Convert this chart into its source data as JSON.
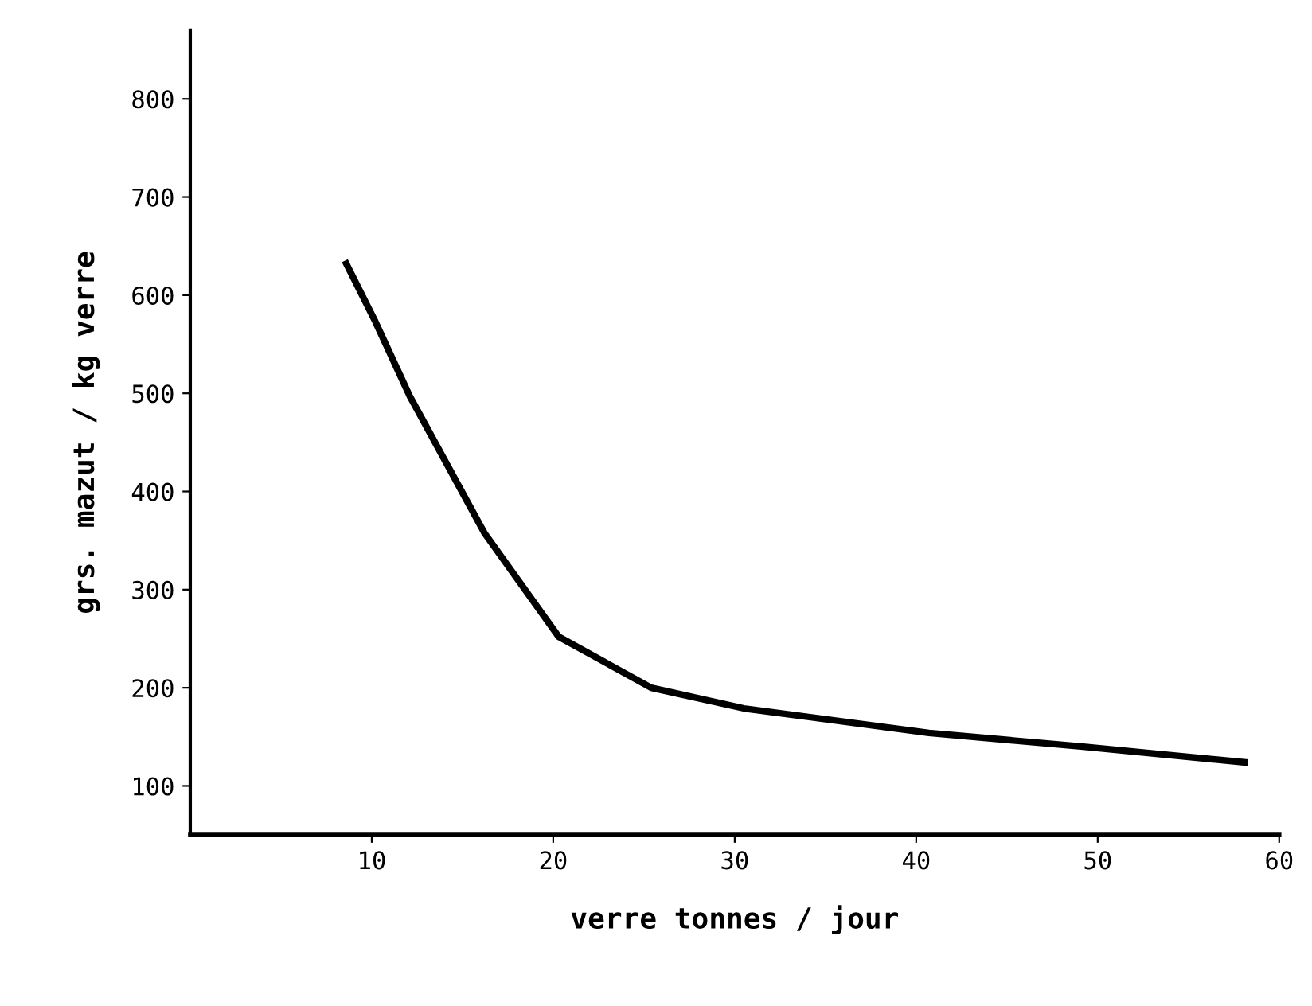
{
  "chart_data": {
    "type": "line",
    "xlabel": "verre tonnes / jour",
    "ylabel": "grs. mazut / kg verre",
    "xlim": [
      0,
      60
    ],
    "xticks": [
      10,
      20,
      30,
      40,
      50,
      60
    ],
    "ylim": [
      50,
      870
    ],
    "yticks": [
      100,
      200,
      300,
      400,
      500,
      600,
      700,
      800
    ],
    "grid": false,
    "legend": false,
    "marker": "none",
    "line_style": "solid",
    "series": [
      {
        "color": "#000000",
        "x": [
          8.6,
          10.2,
          12.1,
          16.2,
          20.3,
          25.4,
          30.5,
          40.7,
          49.2,
          58.1
        ],
        "values": [
          632,
          573,
          497,
          358,
          252,
          200,
          179,
          154,
          140,
          124
        ]
      }
    ]
  }
}
